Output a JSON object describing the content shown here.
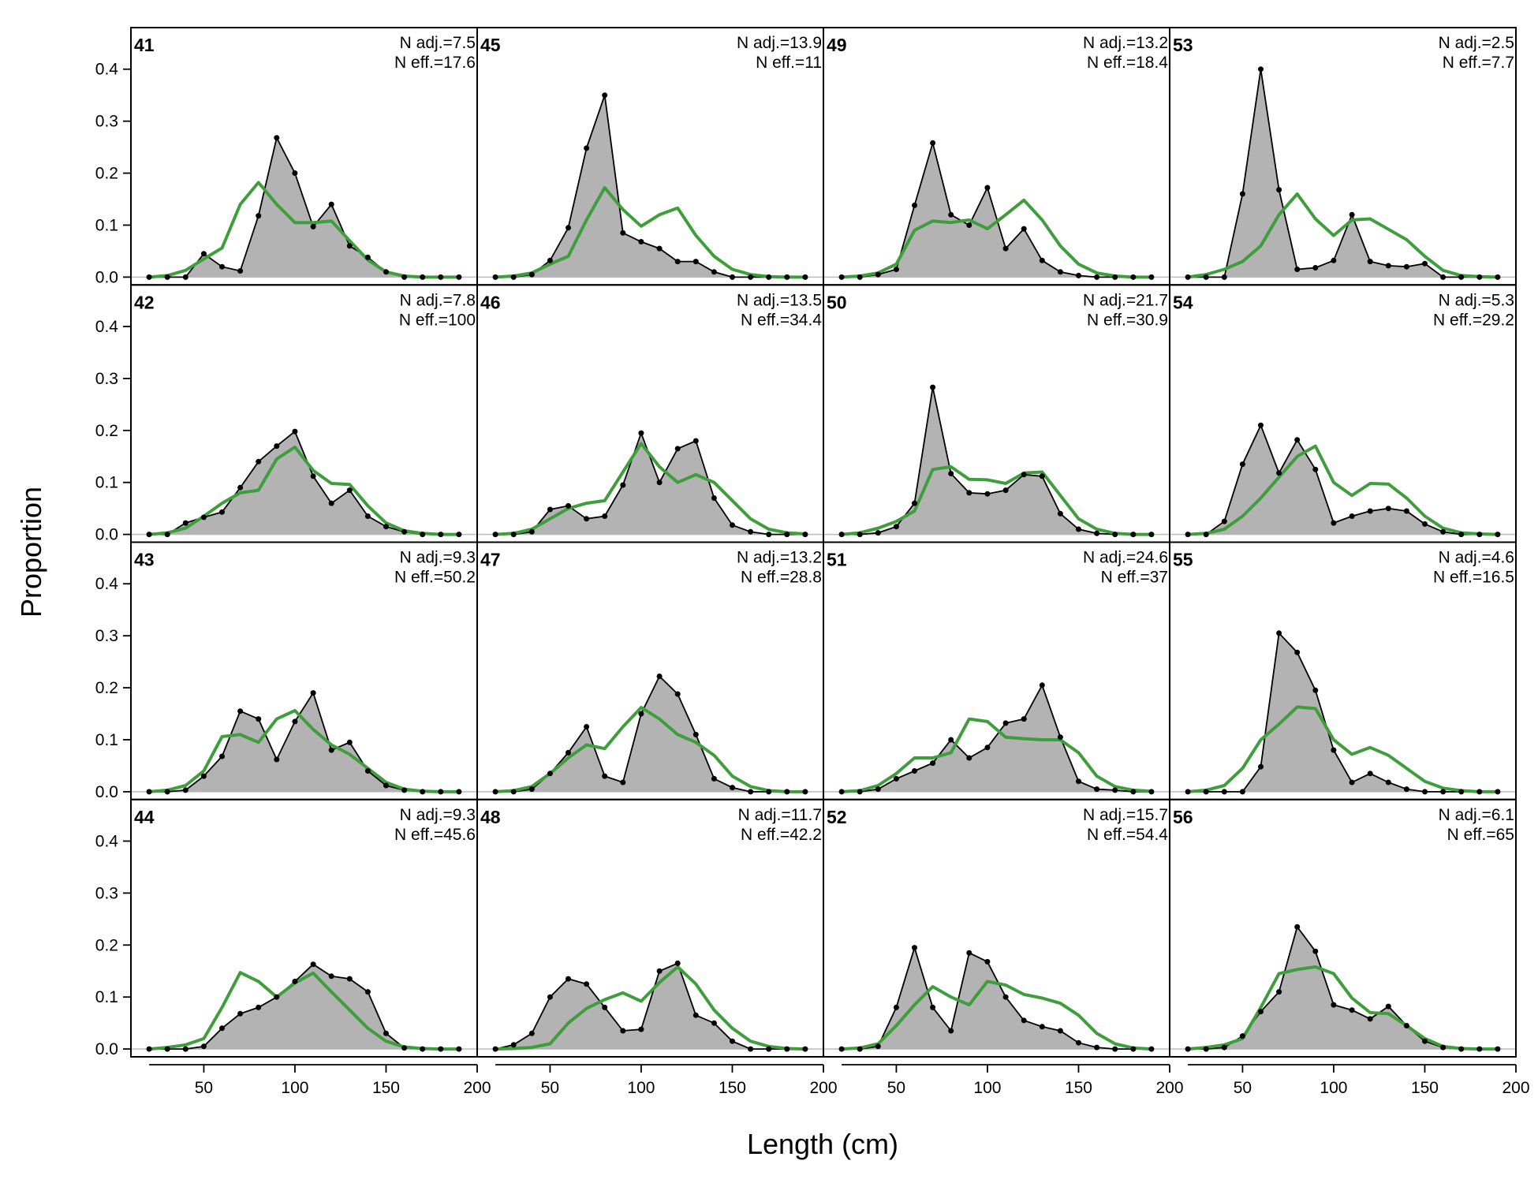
{
  "chart_data": {
    "type": "line",
    "xlabel": "Length (cm)",
    "ylabel": "Proportion",
    "xlim": [
      10,
      200
    ],
    "ylim": [
      -0.015,
      0.48
    ],
    "x_ticks": [
      50,
      100,
      150,
      200
    ],
    "y_ticks": [
      0.0,
      0.1,
      0.2,
      0.3,
      0.4
    ],
    "y_tick_labels": [
      "0.0",
      "0.1",
      "0.2",
      "0.3",
      "0.4"
    ],
    "x": [
      20,
      30,
      40,
      50,
      60,
      70,
      80,
      90,
      100,
      110,
      120,
      130,
      140,
      150,
      160,
      170,
      180,
      190
    ],
    "layout": "4x4 panels, columns filled top-to-bottom",
    "observed_style": "grey filled polygon with black points and line",
    "expected_style": "green line",
    "colors": {
      "observed_fill": "#b3b3b3",
      "observed_line": "#000000",
      "expected": "#3f9e3c",
      "zero_line": "#bbbbbb"
    },
    "panels": [
      {
        "label": "41",
        "n_adj": "N adj.=7.5",
        "n_eff": "N eff.=17.6",
        "observed": [
          0,
          0,
          0,
          0.045,
          0.02,
          0.012,
          0.118,
          0.268,
          0.2,
          0.097,
          0.14,
          0.06,
          0.038,
          0.01,
          0,
          0,
          0,
          0
        ],
        "expected": [
          0,
          0.003,
          0.013,
          0.035,
          0.056,
          0.14,
          0.182,
          0.14,
          0.105,
          0.105,
          0.108,
          0.07,
          0.033,
          0.01,
          0.002,
          0,
          0,
          0
        ]
      },
      {
        "label": "42",
        "n_adj": "N adj.=7.8",
        "n_eff": "N eff.=100",
        "observed": [
          0,
          0,
          0.022,
          0.033,
          0.043,
          0.09,
          0.14,
          0.17,
          0.198,
          0.112,
          0.06,
          0.085,
          0.035,
          0.015,
          0.005,
          0,
          0,
          0
        ],
        "expected": [
          0,
          0.003,
          0.012,
          0.035,
          0.06,
          0.08,
          0.085,
          0.145,
          0.168,
          0.123,
          0.098,
          0.096,
          0.055,
          0.022,
          0.007,
          0.002,
          0,
          0
        ]
      },
      {
        "label": "43",
        "n_adj": "N adj.=9.3",
        "n_eff": "N eff.=50.2",
        "observed": [
          0,
          0,
          0.003,
          0.03,
          0.068,
          0.155,
          0.14,
          0.062,
          0.135,
          0.19,
          0.08,
          0.095,
          0.04,
          0.012,
          0.003,
          0,
          0,
          0
        ],
        "expected": [
          0,
          0.003,
          0.012,
          0.04,
          0.106,
          0.11,
          0.095,
          0.14,
          0.156,
          0.12,
          0.09,
          0.072,
          0.045,
          0.018,
          0.005,
          0.001,
          0,
          0
        ]
      },
      {
        "label": "44",
        "n_adj": "N adj.=9.3",
        "n_eff": "N eff.=45.6",
        "observed": [
          0,
          0,
          0,
          0.005,
          0.04,
          0.068,
          0.08,
          0.1,
          0.13,
          0.163,
          0.14,
          0.135,
          0.11,
          0.03,
          0.002,
          0,
          0,
          0
        ],
        "expected": [
          0,
          0.003,
          0.008,
          0.02,
          0.08,
          0.147,
          0.13,
          0.1,
          0.127,
          0.146,
          0.11,
          0.075,
          0.04,
          0.015,
          0.004,
          0.001,
          0,
          0
        ]
      },
      {
        "label": "45",
        "n_adj": "N adj.=13.9",
        "n_eff": "N eff.=11",
        "observed": [
          0,
          0,
          0.005,
          0.032,
          0.095,
          0.248,
          0.35,
          0.085,
          0.068,
          0.055,
          0.03,
          0.03,
          0.01,
          0,
          0,
          0,
          0,
          0
        ],
        "expected": [
          0,
          0.002,
          0.008,
          0.025,
          0.04,
          0.11,
          0.172,
          0.13,
          0.098,
          0.12,
          0.133,
          0.08,
          0.04,
          0.015,
          0.005,
          0.001,
          0,
          0
        ]
      },
      {
        "label": "46",
        "n_adj": "N adj.=13.5",
        "n_eff": "N eff.=34.4",
        "observed": [
          0,
          0,
          0.005,
          0.048,
          0.055,
          0.03,
          0.035,
          0.095,
          0.195,
          0.1,
          0.165,
          0.18,
          0.07,
          0.018,
          0.005,
          0,
          0,
          0
        ],
        "expected": [
          0,
          0.002,
          0.01,
          0.03,
          0.05,
          0.06,
          0.065,
          0.12,
          0.175,
          0.13,
          0.1,
          0.115,
          0.1,
          0.065,
          0.03,
          0.01,
          0.003,
          0.001
        ]
      },
      {
        "label": "47",
        "n_adj": "N adj.=13.2",
        "n_eff": "N eff.=28.8",
        "observed": [
          0,
          0,
          0.005,
          0.035,
          0.075,
          0.125,
          0.03,
          0.018,
          0.15,
          0.222,
          0.188,
          0.11,
          0.025,
          0.008,
          0,
          0,
          0,
          0
        ],
        "expected": [
          0,
          0.002,
          0.01,
          0.035,
          0.065,
          0.09,
          0.083,
          0.125,
          0.162,
          0.14,
          0.11,
          0.095,
          0.07,
          0.03,
          0.01,
          0.002,
          0,
          0
        ]
      },
      {
        "label": "48",
        "n_adj": "N adj.=11.7",
        "n_eff": "N eff.=42.2",
        "observed": [
          0,
          0.008,
          0.03,
          0.1,
          0.135,
          0.125,
          0.08,
          0.035,
          0.038,
          0.15,
          0.165,
          0.065,
          0.05,
          0.015,
          0,
          0,
          0,
          0
        ],
        "expected": [
          0,
          0.001,
          0.003,
          0.01,
          0.05,
          0.078,
          0.095,
          0.108,
          0.092,
          0.128,
          0.158,
          0.125,
          0.075,
          0.04,
          0.015,
          0.005,
          0.001,
          0
        ]
      },
      {
        "label": "49",
        "n_adj": "N adj.=13.2",
        "n_eff": "N eff.=18.4",
        "observed": [
          0,
          0,
          0.005,
          0.015,
          0.138,
          0.258,
          0.12,
          0.1,
          0.172,
          0.055,
          0.093,
          0.032,
          0.01,
          0.003,
          0,
          0,
          0,
          0
        ],
        "expected": [
          0,
          0.002,
          0.008,
          0.025,
          0.09,
          0.108,
          0.105,
          0.11,
          0.093,
          0.12,
          0.148,
          0.11,
          0.06,
          0.025,
          0.008,
          0.002,
          0,
          0
        ]
      },
      {
        "label": "50",
        "n_adj": "N adj.=21.7",
        "n_eff": "N eff.=30.9",
        "observed": [
          0,
          0,
          0.003,
          0.015,
          0.06,
          0.283,
          0.117,
          0.08,
          0.078,
          0.085,
          0.115,
          0.112,
          0.04,
          0.01,
          0.002,
          0,
          0,
          0
        ],
        "expected": [
          0,
          0.003,
          0.012,
          0.025,
          0.045,
          0.125,
          0.13,
          0.106,
          0.105,
          0.098,
          0.118,
          0.12,
          0.075,
          0.03,
          0.01,
          0.002,
          0,
          0
        ]
      },
      {
        "label": "51",
        "n_adj": "N adj.=24.6",
        "n_eff": "N eff.=37",
        "observed": [
          0,
          0,
          0.005,
          0.025,
          0.04,
          0.055,
          0.1,
          0.065,
          0.085,
          0.132,
          0.14,
          0.205,
          0.105,
          0.02,
          0.005,
          0.003,
          0,
          0
        ],
        "expected": [
          0,
          0.002,
          0.012,
          0.035,
          0.065,
          0.065,
          0.075,
          0.14,
          0.135,
          0.105,
          0.102,
          0.1,
          0.1,
          0.075,
          0.03,
          0.01,
          0.003,
          0.001
        ]
      },
      {
        "label": "52",
        "n_adj": "N adj.=15.7",
        "n_eff": "N eff.=54.4",
        "observed": [
          0,
          0,
          0.005,
          0.08,
          0.195,
          0.08,
          0.035,
          0.185,
          0.168,
          0.1,
          0.055,
          0.043,
          0.035,
          0.012,
          0.003,
          0,
          0,
          0
        ],
        "expected": [
          0,
          0.002,
          0.01,
          0.045,
          0.085,
          0.12,
          0.1,
          0.085,
          0.13,
          0.123,
          0.105,
          0.098,
          0.088,
          0.065,
          0.03,
          0.01,
          0.002,
          0
        ]
      },
      {
        "label": "53",
        "n_adj": "N adj.=2.5",
        "n_eff": "N eff.=7.7",
        "observed": [
          0,
          0,
          0,
          0.16,
          0.4,
          0.168,
          0.015,
          0.018,
          0.032,
          0.12,
          0.03,
          0.022,
          0.02,
          0.026,
          0,
          0,
          0,
          0
        ],
        "expected": [
          0,
          0.005,
          0.015,
          0.03,
          0.06,
          0.12,
          0.16,
          0.112,
          0.08,
          0.11,
          0.112,
          0.092,
          0.072,
          0.04,
          0.013,
          0.003,
          0.001,
          0
        ]
      },
      {
        "label": "54",
        "n_adj": "N adj.=5.3",
        "n_eff": "N eff.=29.2",
        "observed": [
          0,
          0,
          0.025,
          0.135,
          0.21,
          0.118,
          0.182,
          0.125,
          0.022,
          0.035,
          0.045,
          0.05,
          0.045,
          0.02,
          0.005,
          0,
          0,
          0
        ],
        "expected": [
          0,
          0.002,
          0.01,
          0.035,
          0.07,
          0.11,
          0.15,
          0.17,
          0.1,
          0.075,
          0.098,
          0.097,
          0.07,
          0.035,
          0.012,
          0.003,
          0.001,
          0
        ]
      },
      {
        "label": "55",
        "n_adj": "N adj.=4.6",
        "n_eff": "N eff.=16.5",
        "observed": [
          0,
          0,
          0,
          0,
          0.048,
          0.305,
          0.268,
          0.195,
          0.08,
          0.018,
          0.035,
          0.018,
          0.005,
          0,
          0,
          0,
          0,
          0
        ],
        "expected": [
          0,
          0.003,
          0.012,
          0.045,
          0.1,
          0.13,
          0.163,
          0.16,
          0.1,
          0.072,
          0.085,
          0.07,
          0.045,
          0.02,
          0.007,
          0.002,
          0,
          0
        ]
      },
      {
        "label": "56",
        "n_adj": "N adj.=6.1",
        "n_eff": "N eff.=65",
        "observed": [
          0,
          0,
          0.003,
          0.025,
          0.072,
          0.11,
          0.235,
          0.188,
          0.085,
          0.075,
          0.058,
          0.082,
          0.045,
          0.015,
          0.003,
          0,
          0,
          0
        ],
        "expected": [
          0,
          0.003,
          0.008,
          0.02,
          0.08,
          0.145,
          0.153,
          0.158,
          0.145,
          0.098,
          0.07,
          0.068,
          0.045,
          0.02,
          0.005,
          0.001,
          0,
          0
        ]
      }
    ]
  }
}
